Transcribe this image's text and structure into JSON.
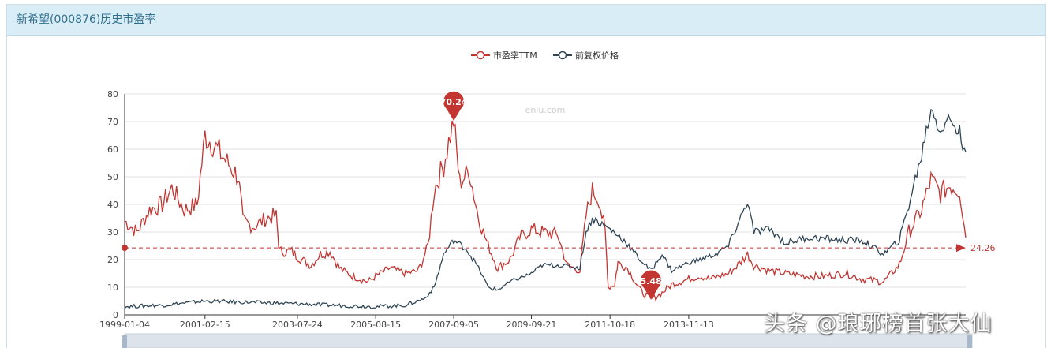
{
  "header": {
    "title": "新希望(000876)历史市盈率"
  },
  "watermarks": {
    "site": "eniu.com",
    "author": "头条 @琅琊榜首张大仙"
  },
  "colors": {
    "pe": "#c23531",
    "price": "#2f4554",
    "grid": "#e0e0e0",
    "header_bg": "#d9edf7"
  },
  "chart_data": {
    "type": "line",
    "title": "",
    "legend": {
      "position": "top-center",
      "items": [
        "市盈率TTM",
        "前复权价格"
      ]
    },
    "x_ticks": [
      "1999-01-04",
      "2001-02-15",
      "2003-07-24",
      "2005-08-15",
      "2007-09-05",
      "2009-09-21",
      "2011-10-18",
      "2013-11-13"
    ],
    "ylim": [
      0,
      80
    ],
    "y_ticks": [
      0,
      10,
      20,
      30,
      40,
      50,
      60,
      70,
      80
    ],
    "grid": true,
    "mark_points": [
      {
        "label": "70.24",
        "x": "2007-09-05",
        "y": 70.24,
        "kind": "max"
      },
      {
        "label": "5.48",
        "x": "2012-11-15",
        "y": 5.48,
        "kind": "min"
      }
    ],
    "mark_line": {
      "label": "24.26",
      "y": 24.26,
      "kind": "average"
    },
    "series": [
      {
        "name": "市盈率TTM",
        "color": "#c23531",
        "points": [
          [
            "1999-01-04",
            34
          ],
          [
            "1999-05-01",
            30
          ],
          [
            "1999-09-01",
            38
          ],
          [
            "2000-01-01",
            40
          ],
          [
            "2000-04-01",
            46
          ],
          [
            "2000-08-01",
            38
          ],
          [
            "2000-12-01",
            40
          ],
          [
            "2001-02-15",
            65
          ],
          [
            "2001-05-01",
            62
          ],
          [
            "2001-09-01",
            56
          ],
          [
            "2002-01-01",
            50
          ],
          [
            "2002-02-15",
            34
          ],
          [
            "2002-06-01",
            32
          ],
          [
            "2002-10-01",
            35
          ],
          [
            "2003-01-01",
            36
          ],
          [
            "2003-02-01",
            23
          ],
          [
            "2003-06-01",
            23
          ],
          [
            "2003-07-24",
            21
          ],
          [
            "2003-12-01",
            18
          ],
          [
            "2004-03-01",
            22
          ],
          [
            "2004-06-01",
            23
          ],
          [
            "2004-09-01",
            17
          ],
          [
            "2005-01-01",
            14
          ],
          [
            "2005-06-01",
            12
          ],
          [
            "2005-08-15",
            14
          ],
          [
            "2006-01-01",
            17
          ],
          [
            "2006-06-01",
            15
          ],
          [
            "2006-10-01",
            16
          ],
          [
            "2007-01-01",
            25
          ],
          [
            "2007-03-01",
            45
          ],
          [
            "2007-06-01",
            55
          ],
          [
            "2007-09-05",
            70.24
          ],
          [
            "2007-11-01",
            48
          ],
          [
            "2008-02-01",
            52
          ],
          [
            "2008-05-01",
            35
          ],
          [
            "2008-08-01",
            25
          ],
          [
            "2008-11-01",
            17
          ],
          [
            "2009-03-01",
            20
          ],
          [
            "2009-06-01",
            28
          ],
          [
            "2009-09-21",
            31
          ],
          [
            "2010-01-01",
            30
          ],
          [
            "2010-06-01",
            29
          ],
          [
            "2010-09-01",
            18
          ],
          [
            "2011-01-01",
            16
          ],
          [
            "2011-03-01",
            36
          ],
          [
            "2011-05-01",
            45
          ],
          [
            "2011-07-01",
            42
          ],
          [
            "2011-09-01",
            30
          ],
          [
            "2011-10-01",
            10
          ],
          [
            "2011-12-01",
            11
          ],
          [
            "2012-01-01",
            19
          ],
          [
            "2012-04-01",
            17
          ],
          [
            "2012-08-01",
            9
          ],
          [
            "2012-11-15",
            5.48
          ],
          [
            "2013-03-01",
            8
          ],
          [
            "2013-06-01",
            11
          ],
          [
            "2013-11-13",
            13
          ],
          [
            "2014-03-01",
            14
          ],
          [
            "2014-06-01",
            13
          ],
          [
            "2014-12-01",
            15
          ],
          [
            "2015-03-01",
            18
          ],
          [
            "2015-06-01",
            22
          ],
          [
            "2015-08-01",
            18
          ],
          [
            "2016-01-01",
            16
          ],
          [
            "2016-06-01",
            15
          ],
          [
            "2017-01-01",
            14
          ],
          [
            "2017-06-01",
            14
          ],
          [
            "2018-01-01",
            15
          ],
          [
            "2018-06-01",
            13
          ],
          [
            "2019-01-01",
            12
          ],
          [
            "2019-06-01",
            18
          ],
          [
            "2019-09-01",
            30
          ],
          [
            "2020-01-01",
            38
          ],
          [
            "2020-04-01",
            49
          ],
          [
            "2020-07-01",
            44
          ],
          [
            "2020-10-01",
            47
          ],
          [
            "2021-01-01",
            45
          ],
          [
            "2021-03-01",
            28
          ]
        ]
      },
      {
        "name": "前复权价格",
        "color": "#2f4554",
        "points": [
          [
            "1999-01-04",
            3
          ],
          [
            "2000-01-01",
            3.5
          ],
          [
            "2001-02-15",
            5
          ],
          [
            "2002-06-01",
            4.5
          ],
          [
            "2003-07-24",
            4
          ],
          [
            "2004-06-01",
            3.5
          ],
          [
            "2005-08-15",
            3
          ],
          [
            "2006-06-01",
            3.5
          ],
          [
            "2006-12-01",
            6
          ],
          [
            "2007-03-01",
            10
          ],
          [
            "2007-06-01",
            22
          ],
          [
            "2007-09-05",
            27
          ],
          [
            "2008-01-01",
            24
          ],
          [
            "2008-05-01",
            17
          ],
          [
            "2008-08-01",
            10
          ],
          [
            "2008-11-01",
            9
          ],
          [
            "2009-03-01",
            12
          ],
          [
            "2009-09-21",
            15
          ],
          [
            "2010-01-01",
            18
          ],
          [
            "2010-06-01",
            18
          ],
          [
            "2011-01-01",
            17
          ],
          [
            "2011-03-01",
            30
          ],
          [
            "2011-05-01",
            35
          ],
          [
            "2011-10-18",
            31
          ],
          [
            "2012-03-01",
            27
          ],
          [
            "2012-08-01",
            20
          ],
          [
            "2012-11-15",
            16
          ],
          [
            "2013-03-01",
            22
          ],
          [
            "2013-06-01",
            16
          ],
          [
            "2013-11-13",
            19
          ],
          [
            "2014-03-01",
            20
          ],
          [
            "2014-08-01",
            22
          ],
          [
            "2014-12-01",
            25
          ],
          [
            "2015-03-01",
            33
          ],
          [
            "2015-06-01",
            41
          ],
          [
            "2015-08-01",
            30
          ],
          [
            "2016-01-01",
            31
          ],
          [
            "2016-06-01",
            26
          ],
          [
            "2017-01-01",
            28
          ],
          [
            "2018-01-01",
            27
          ],
          [
            "2018-06-01",
            27
          ],
          [
            "2019-01-01",
            22
          ],
          [
            "2019-06-01",
            27
          ],
          [
            "2019-09-01",
            40
          ],
          [
            "2020-01-01",
            58
          ],
          [
            "2020-04-01",
            75
          ],
          [
            "2020-07-01",
            67
          ],
          [
            "2020-10-01",
            71
          ],
          [
            "2021-01-01",
            66
          ],
          [
            "2021-03-01",
            59
          ]
        ]
      }
    ]
  }
}
